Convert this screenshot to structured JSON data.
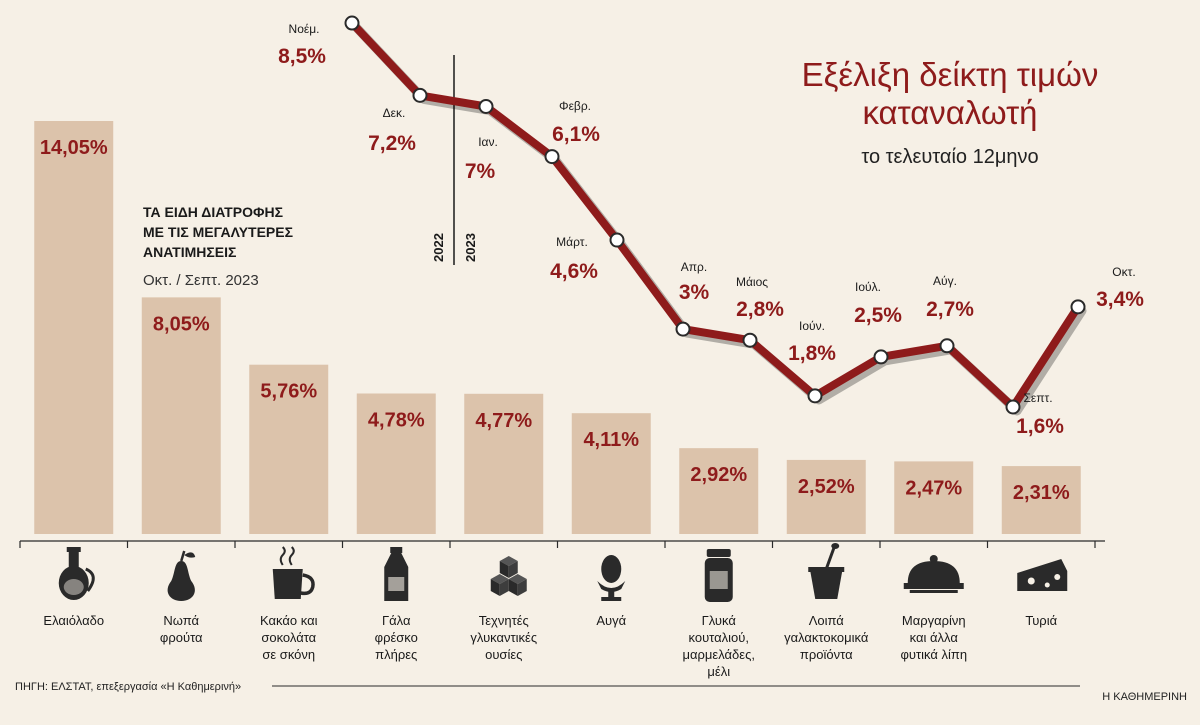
{
  "title_line1": "Εξέλιξη δείκτη τιμών",
  "title_line2": "καταναλωτή",
  "subtitle": "το τελευταίο 12μηνο",
  "bars_heading": [
    "ΤΑ ΕΙΔΗ ΔΙΑΤΡΟΦΗΣ",
    "ΜΕ ΤΙΣ ΜΕΓΑΛΥΤΕΡΕΣ",
    "ΑΝΑΤΙΜΗΣΕΙΣ"
  ],
  "bars_period": "Οκτ. / Σεπτ. 2023",
  "year_labels": [
    "2022",
    "2023"
  ],
  "source": "ΠΗΓΗ: ΕΛΣΤΑΤ, επεξεργασία «Η Καθημερινή»",
  "brand": "Η ΚΑΘΗΜΕΡΙΝΗ",
  "colors": {
    "accent": "#8e1b1b",
    "bar": "#dcc3ab",
    "background": "#f6f0e6"
  },
  "chart_data": [
    {
      "type": "bar",
      "categories": [
        [
          "Ελαιόλαδο"
        ],
        [
          "Νωπά",
          "φρούτα"
        ],
        [
          "Κακάο και",
          "σοκολάτα",
          "σε σκόνη"
        ],
        [
          "Γάλα",
          "φρέσκο",
          "πλήρες"
        ],
        [
          "Τεχνητές",
          "γλυκαντικές",
          "ουσίες"
        ],
        [
          "Αυγά"
        ],
        [
          "Γλυκά",
          "κουταλιού,",
          "μαρμελάδες,",
          "μέλι"
        ],
        [
          "Λοιπά",
          "γαλακτοκομικά",
          "προϊόντα"
        ],
        [
          "Μαργαρίνη",
          "και άλλα",
          "φυτικά λίπη"
        ],
        [
          "Τυριά"
        ]
      ],
      "values": [
        14.05,
        8.05,
        5.76,
        4.78,
        4.77,
        4.11,
        2.92,
        2.52,
        2.47,
        2.31
      ],
      "labels": [
        "14,05%",
        "8,05%",
        "5,76%",
        "4,78%",
        "4,77%",
        "4,11%",
        "2,92%",
        "2,52%",
        "2,47%",
        "2,31%"
      ],
      "icons": [
        "olive-oil-icon",
        "pear-icon",
        "cocoa-cup-icon",
        "milk-bottle-icon",
        "sugar-cubes-icon",
        "egg-icon",
        "jam-jar-icon",
        "yogurt-icon",
        "butter-dish-icon",
        "cheese-icon"
      ],
      "unit": "%"
    },
    {
      "type": "line",
      "x": [
        "Νοέμ.",
        "Δεκ.",
        "Ιαν.",
        "Φεβρ.",
        "Μάρτ.",
        "Απρ.",
        "Μάιος",
        "Ιούν.",
        "Ιούλ.",
        "Αύγ.",
        "Σεπτ.",
        "Οκτ."
      ],
      "values": [
        8.5,
        7.2,
        7.0,
        6.1,
        4.6,
        3.0,
        2.8,
        1.8,
        2.5,
        2.7,
        1.6,
        3.4
      ],
      "labels": [
        "8,5%",
        "7,2%",
        "7%",
        "6,1%",
        "4,6%",
        "3%",
        "2,8%",
        "1,8%",
        "2,5%",
        "2,7%",
        "1,6%",
        "3,4%"
      ],
      "unit": "%"
    }
  ]
}
